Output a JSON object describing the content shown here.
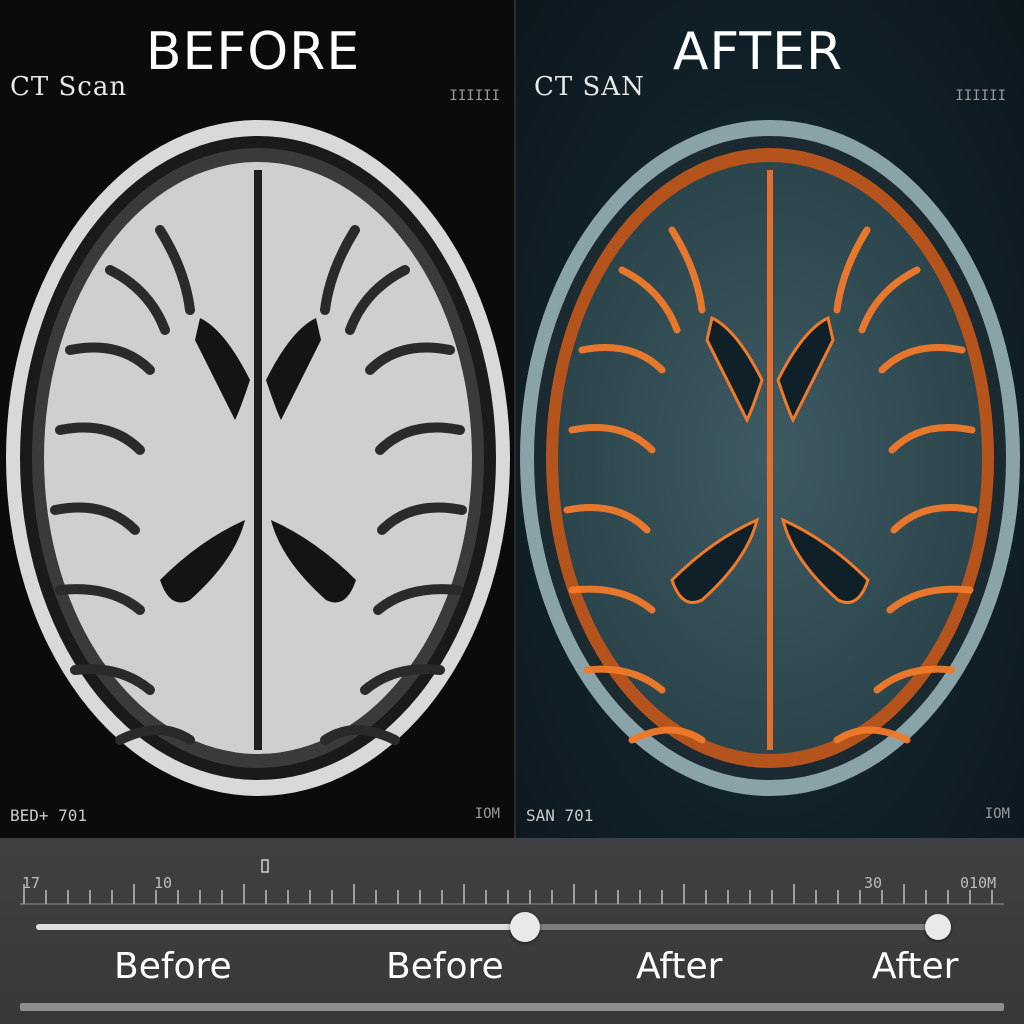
{
  "panels": {
    "before": {
      "title": "BEFORE",
      "scan_label": "CT Scan",
      "corner_top_right": "IIIIII",
      "corner_bottom_left": "BED+ 701",
      "corner_bottom_right": "IOM"
    },
    "after": {
      "title": "AFTER",
      "scan_label": "CT SAN",
      "corner_top_right": "IIIIII",
      "corner_bottom_left": "SAN 701",
      "corner_bottom_right": "IOM"
    }
  },
  "ruler": {
    "labels": [
      "17",
      "10",
      "30",
      "010M"
    ]
  },
  "slider": {
    "position_fraction": 0.53,
    "options": [
      "Before",
      "Before",
      "After",
      "After"
    ]
  },
  "colors": {
    "before_background": "#0b0b0b",
    "after_background": "#112028",
    "after_glow": "#f07a2a"
  }
}
